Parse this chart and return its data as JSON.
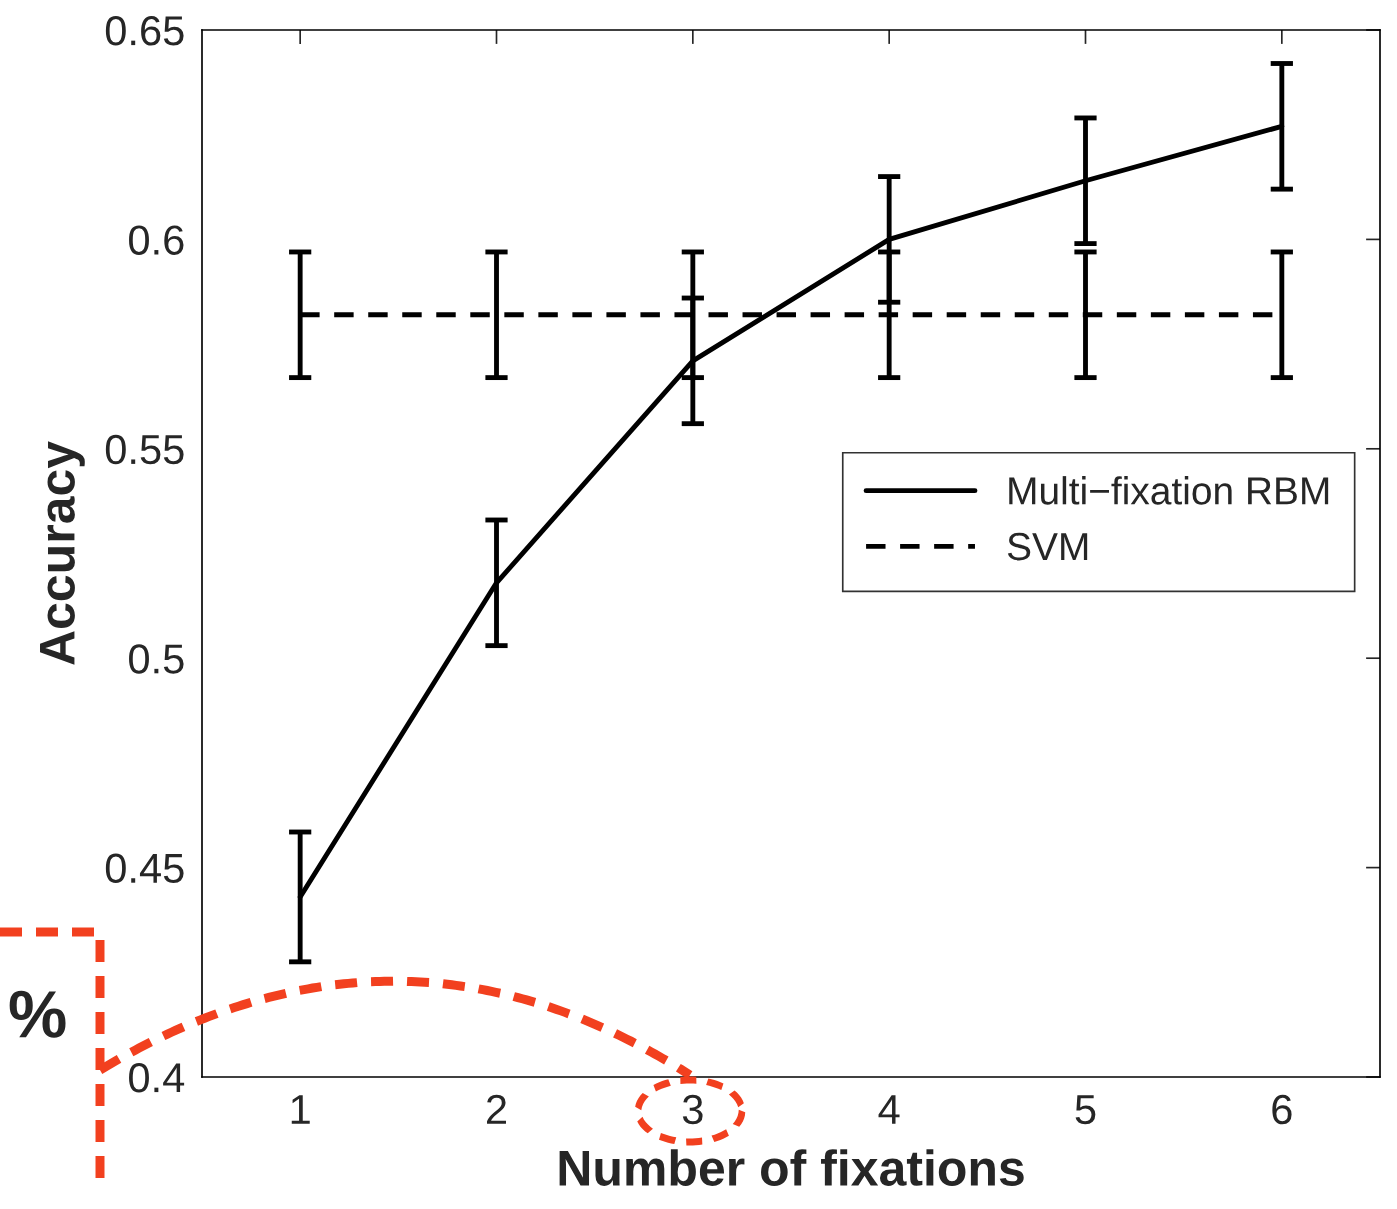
{
  "chart_data": {
    "type": "line",
    "xlabel": "Number of fixations",
    "ylabel": "Accuracy",
    "x": [
      1,
      2,
      3,
      4,
      5,
      6
    ],
    "series": [
      {
        "name": "Multi−fixation RBM",
        "color": "#000000",
        "line_style": "solid",
        "values": [
          0.443,
          0.518,
          0.571,
          0.6,
          0.614,
          0.627
        ],
        "errors": [
          0.0155,
          0.015,
          0.015,
          0.015,
          0.015,
          0.015
        ]
      },
      {
        "name": "SVM",
        "color": "#000000",
        "line_style": "dashed",
        "values": [
          0.582,
          0.582,
          0.582,
          0.582,
          0.582,
          0.582
        ],
        "errors": [
          0.015,
          0.015,
          0.015,
          0.015,
          0.015,
          0.015
        ]
      }
    ],
    "xlim": [
      0.5,
      6.5
    ],
    "ylim": [
      0.4,
      0.65
    ],
    "xticks": [
      1,
      2,
      3,
      4,
      5,
      6
    ],
    "yticks": [
      0.4,
      0.45,
      0.5,
      0.55,
      0.6,
      0.65
    ],
    "grid": false,
    "legend": "right",
    "marker": "none",
    "annotations": [
      "%"
    ]
  }
}
